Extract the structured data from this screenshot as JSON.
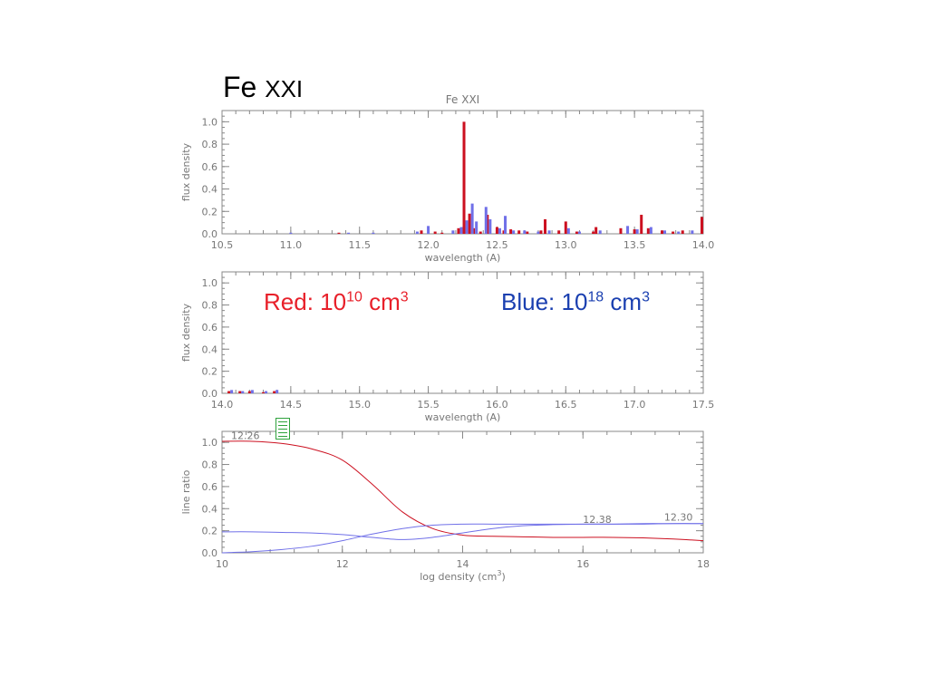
{
  "slide": {
    "title_main": "Fe ",
    "title_roman": "XXI"
  },
  "notes": {
    "red_prefix": "Red: 10",
    "red_exp": "10",
    "red_unit": " cm",
    "red_unit_exp": "3",
    "blue_prefix": "Blue: 10",
    "blue_exp": "18",
    "blue_unit": " cm",
    "blue_unit_exp": "3"
  },
  "colors": {
    "red": "#cc1020",
    "blue": "#7070e8",
    "axis": "#888888",
    "text": "#777777",
    "icon": "#2ea23c"
  },
  "icons": {
    "notes": "document-icon"
  },
  "chart_data": [
    {
      "type": "bar",
      "title": "Fe XXI",
      "xlabel": "wavelength (A)",
      "ylabel": "flux density",
      "xlim": [
        10.5,
        14.0
      ],
      "ylim": [
        0,
        1.1
      ],
      "xticks": [
        "10.5",
        "11.0",
        "11.5",
        "12.0",
        "12.5",
        "13.0",
        "13.5",
        "14.0"
      ],
      "yticks": [
        "0.0",
        "0.2",
        "0.4",
        "0.6",
        "0.8",
        "1.0"
      ],
      "series": [
        {
          "color": "#cc1020",
          "points": [
            [
              11.35,
              0.01
            ],
            [
              11.95,
              0.03
            ],
            [
              12.05,
              0.02
            ],
            [
              12.1,
              0.01
            ],
            [
              12.22,
              0.05
            ],
            [
              12.26,
              1.0
            ],
            [
              12.3,
              0.18
            ],
            [
              12.33,
              0.05
            ],
            [
              12.38,
              0.02
            ],
            [
              12.43,
              0.17
            ],
            [
              12.5,
              0.06
            ],
            [
              12.55,
              0.03
            ],
            [
              12.6,
              0.04
            ],
            [
              12.66,
              0.03
            ],
            [
              12.72,
              0.02
            ],
            [
              12.82,
              0.03
            ],
            [
              12.85,
              0.13
            ],
            [
              12.95,
              0.03
            ],
            [
              13.0,
              0.11
            ],
            [
              13.08,
              0.02
            ],
            [
              13.2,
              0.02
            ],
            [
              13.22,
              0.06
            ],
            [
              13.4,
              0.05
            ],
            [
              13.5,
              0.04
            ],
            [
              13.55,
              0.17
            ],
            [
              13.6,
              0.05
            ],
            [
              13.7,
              0.03
            ],
            [
              13.78,
              0.02
            ],
            [
              13.85,
              0.03
            ],
            [
              13.99,
              0.15
            ]
          ]
        },
        {
          "color": "#7070e8",
          "points": [
            [
              11.0,
              0.01
            ],
            [
              11.42,
              0.01
            ],
            [
              11.6,
              0.01
            ],
            [
              11.92,
              0.02
            ],
            [
              12.0,
              0.07
            ],
            [
              12.18,
              0.03
            ],
            [
              12.24,
              0.06
            ],
            [
              12.28,
              0.12
            ],
            [
              12.32,
              0.27
            ],
            [
              12.35,
              0.11
            ],
            [
              12.42,
              0.24
            ],
            [
              12.45,
              0.13
            ],
            [
              12.52,
              0.05
            ],
            [
              12.56,
              0.16
            ],
            [
              12.62,
              0.03
            ],
            [
              12.7,
              0.03
            ],
            [
              12.8,
              0.02
            ],
            [
              12.88,
              0.03
            ],
            [
              13.02,
              0.05
            ],
            [
              13.1,
              0.02
            ],
            [
              13.25,
              0.03
            ],
            [
              13.45,
              0.07
            ],
            [
              13.52,
              0.04
            ],
            [
              13.62,
              0.06
            ],
            [
              13.72,
              0.03
            ],
            [
              13.82,
              0.02
            ],
            [
              13.92,
              0.03
            ]
          ]
        }
      ]
    },
    {
      "type": "bar",
      "xlabel": "wavelength (A)",
      "ylabel": "flux density",
      "xlim": [
        14.0,
        17.5
      ],
      "ylim": [
        0,
        1.1
      ],
      "xticks": [
        "14.0",
        "14.5",
        "15.0",
        "15.5",
        "16.0",
        "16.5",
        "17.0",
        "17.5"
      ],
      "yticks": [
        "0.0",
        "0.2",
        "0.4",
        "0.6",
        "0.8",
        "1.0"
      ],
      "series": [
        {
          "color": "#cc1020",
          "points": [
            [
              14.05,
              0.02
            ],
            [
              14.13,
              0.02
            ],
            [
              14.2,
              0.02
            ],
            [
              14.3,
              0.01
            ],
            [
              14.38,
              0.02
            ]
          ]
        },
        {
          "color": "#7070e8",
          "points": [
            [
              14.07,
              0.03
            ],
            [
              14.15,
              0.02
            ],
            [
              14.22,
              0.03
            ],
            [
              14.32,
              0.02
            ],
            [
              14.4,
              0.03
            ]
          ]
        }
      ]
    },
    {
      "type": "line",
      "xlabel": "log density (cm",
      "xlabel_sup": "3",
      "xlabel_end": ")",
      "ylabel": "line ratio",
      "xlim": [
        10,
        18
      ],
      "ylim": [
        0,
        1.1
      ],
      "xticks": [
        "10",
        "12",
        "14",
        "16",
        "18"
      ],
      "yticks": [
        "0.0",
        "0.2",
        "0.4",
        "0.6",
        "0.8",
        "1.0"
      ],
      "series": [
        {
          "name": "12.26",
          "color": "#cc1020",
          "x": [
            10,
            10.5,
            11,
            11.5,
            12,
            12.5,
            13,
            13.5,
            14,
            14.5,
            15,
            15.5,
            16,
            16.5,
            17,
            17.5,
            18
          ],
          "y": [
            1.01,
            1.01,
            0.99,
            0.94,
            0.84,
            0.62,
            0.37,
            0.22,
            0.16,
            0.15,
            0.145,
            0.14,
            0.14,
            0.14,
            0.135,
            0.125,
            0.11
          ]
        },
        {
          "name": "12.38",
          "color": "#7070e8",
          "x": [
            10,
            10.5,
            11,
            11.5,
            12,
            12.5,
            13,
            13.5,
            14,
            14.5,
            15,
            15.5,
            16,
            16.5,
            17,
            17.5,
            18
          ],
          "y": [
            0.0,
            0.01,
            0.03,
            0.06,
            0.11,
            0.17,
            0.22,
            0.25,
            0.26,
            0.26,
            0.26,
            0.26,
            0.26,
            0.26,
            0.265,
            0.265,
            0.265
          ]
        },
        {
          "name": "12.30",
          "color": "#7070e8",
          "x": [
            10,
            10.5,
            11,
            11.5,
            12,
            12.5,
            13,
            13.5,
            14,
            14.5,
            15,
            15.5,
            16,
            16.5,
            17,
            17.5,
            18
          ],
          "y": [
            0.19,
            0.19,
            0.185,
            0.18,
            0.165,
            0.14,
            0.12,
            0.14,
            0.18,
            0.22,
            0.245,
            0.255,
            0.26,
            0.26,
            0.26,
            0.265,
            0.265
          ]
        }
      ],
      "annotations": [
        "12.26",
        "12.38",
        "12.30"
      ]
    }
  ]
}
